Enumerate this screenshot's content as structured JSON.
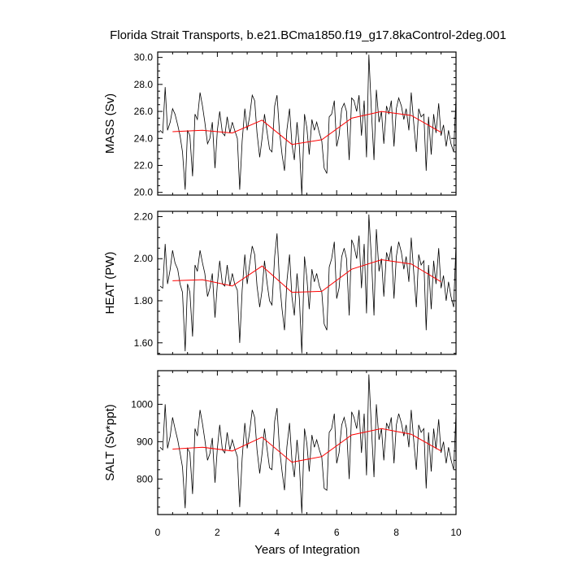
{
  "title": "Florida Strait Transports, b.e21.BCma1850.f19_g17.8kaControl-2deg.001",
  "xlabel": "Years of Integration",
  "chart_data": [
    {
      "type": "line",
      "ylabel": "MASS (Sv)",
      "xlim": [
        0,
        10
      ],
      "ylim": [
        19.8,
        30.4
      ],
      "yticks": [
        20.0,
        22.0,
        24.0,
        26.0,
        28.0,
        30.0
      ],
      "ytick_labels": [
        "20.0",
        "22.0",
        "24.0",
        "26.0",
        "28.0",
        "30.0"
      ],
      "xticks": [
        0,
        2,
        4,
        6,
        8,
        10
      ],
      "xtick_labels": [
        "0",
        "2",
        "4",
        "6",
        "8",
        "10"
      ],
      "series": [
        {
          "color": "#000000",
          "x": [
            0.08,
            0.17,
            0.25,
            0.33,
            0.42,
            0.5,
            0.58,
            0.67,
            0.75,
            0.83,
            0.92,
            1.0,
            1.08,
            1.17,
            1.25,
            1.33,
            1.42,
            1.5,
            1.58,
            1.67,
            1.75,
            1.83,
            1.92,
            2.0,
            2.08,
            2.17,
            2.25,
            2.33,
            2.42,
            2.5,
            2.58,
            2.67,
            2.75,
            2.83,
            2.92,
            3.0,
            3.08,
            3.17,
            3.25,
            3.33,
            3.42,
            3.5,
            3.58,
            3.67,
            3.75,
            3.83,
            3.92,
            4.0,
            4.08,
            4.17,
            4.25,
            4.33,
            4.42,
            4.5,
            4.58,
            4.67,
            4.75,
            4.83,
            4.92,
            5.0,
            5.08,
            5.17,
            5.25,
            5.33,
            5.42,
            5.5,
            5.58,
            5.67,
            5.75,
            5.83,
            5.92,
            6.0,
            6.08,
            6.17,
            6.25,
            6.33,
            6.42,
            6.5,
            6.58,
            6.67,
            6.75,
            6.83,
            6.92,
            7.0,
            7.08,
            7.17,
            7.25,
            7.33,
            7.42,
            7.5,
            7.58,
            7.67,
            7.75,
            7.83,
            7.92,
            8.0,
            8.08,
            8.17,
            8.25,
            8.33,
            8.42,
            8.5,
            8.58,
            8.67,
            8.75,
            8.83,
            8.92,
            9.0,
            9.08,
            9.17,
            9.25,
            9.33,
            9.42,
            9.5,
            9.58,
            9.67,
            9.75,
            9.83,
            9.92,
            10.0
          ],
          "y": [
            24.6,
            24.4,
            27.8,
            24.6,
            25.2,
            26.2,
            25.8,
            25.0,
            24.2,
            23.0,
            20.2,
            24.6,
            24.2,
            21.2,
            25.8,
            25.4,
            27.4,
            26.4,
            25.2,
            23.6,
            24.0,
            25.2,
            21.8,
            24.6,
            26.0,
            24.4,
            24.2,
            25.6,
            24.4,
            25.2,
            24.6,
            24.0,
            20.2,
            23.8,
            26.2,
            24.6,
            25.6,
            27.2,
            26.8,
            24.4,
            22.6,
            24.0,
            25.8,
            24.4,
            23.2,
            23.0,
            26.4,
            27.2,
            24.6,
            22.8,
            21.6,
            24.6,
            26.2,
            23.6,
            22.4,
            25.2,
            23.4,
            19.8,
            25.8,
            24.8,
            22.8,
            25.4,
            24.6,
            25.2,
            24.4,
            23.8,
            21.8,
            21.4,
            25.6,
            25.8,
            26.8,
            23.4,
            24.2,
            26.2,
            26.6,
            26.0,
            22.4,
            27.0,
            26.8,
            26.0,
            27.2,
            24.2,
            26.8,
            22.6,
            30.2,
            25.8,
            22.4,
            27.6,
            25.2,
            26.0,
            23.6,
            26.4,
            25.8,
            26.8,
            23.4,
            26.2,
            27.0,
            26.4,
            25.4,
            26.2,
            24.6,
            27.4,
            25.2,
            23.0,
            26.2,
            25.6,
            25.8,
            21.6,
            25.6,
            22.8,
            25.8,
            24.4,
            26.6,
            24.2,
            25.0,
            23.4,
            24.6,
            23.6,
            23.0,
            27.0
          ]
        },
        {
          "color": "#ff0000",
          "x": [
            0.5,
            1.5,
            2.5,
            3.5,
            4.5,
            5.5,
            6.5,
            7.5,
            8.5,
            9.5
          ],
          "y": [
            24.5,
            24.6,
            24.4,
            25.35,
            23.55,
            23.9,
            25.5,
            26.0,
            25.7,
            24.45
          ]
        }
      ]
    },
    {
      "type": "line",
      "ylabel": "HEAT (PW)",
      "xlim": [
        0,
        10
      ],
      "ylim": [
        1.545,
        2.225
      ],
      "yticks": [
        1.6,
        1.8,
        2.0,
        2.2
      ],
      "ytick_labels": [
        "1.60",
        "1.80",
        "2.00",
        "2.20"
      ],
      "xticks": [
        0,
        2,
        4,
        6,
        8,
        10
      ],
      "xtick_labels": [
        "0",
        "2",
        "4",
        "6",
        "8",
        "10"
      ],
      "series": [
        {
          "color": "#000000",
          "x": [
            0.08,
            0.17,
            0.25,
            0.33,
            0.42,
            0.5,
            0.58,
            0.67,
            0.75,
            0.83,
            0.92,
            1.0,
            1.08,
            1.17,
            1.25,
            1.33,
            1.42,
            1.5,
            1.58,
            1.67,
            1.75,
            1.83,
            1.92,
            2.0,
            2.08,
            2.17,
            2.25,
            2.33,
            2.42,
            2.5,
            2.58,
            2.67,
            2.75,
            2.83,
            2.92,
            3.0,
            3.08,
            3.17,
            3.25,
            3.33,
            3.42,
            3.5,
            3.58,
            3.67,
            3.75,
            3.83,
            3.92,
            4.0,
            4.08,
            4.17,
            4.25,
            4.33,
            4.42,
            4.5,
            4.58,
            4.67,
            4.75,
            4.83,
            4.92,
            5.0,
            5.08,
            5.17,
            5.25,
            5.33,
            5.42,
            5.5,
            5.58,
            5.67,
            5.75,
            5.83,
            5.92,
            6.0,
            6.08,
            6.17,
            6.25,
            6.33,
            6.42,
            6.5,
            6.58,
            6.67,
            6.75,
            6.83,
            6.92,
            7.0,
            7.08,
            7.17,
            7.25,
            7.33,
            7.42,
            7.5,
            7.58,
            7.67,
            7.75,
            7.83,
            7.92,
            8.0,
            8.08,
            8.17,
            8.25,
            8.33,
            8.42,
            8.5,
            8.58,
            8.67,
            8.75,
            8.83,
            8.92,
            9.0,
            9.08,
            9.17,
            9.25,
            9.33,
            9.42,
            9.5,
            9.58,
            9.67,
            9.75,
            9.83,
            9.92,
            10.0
          ],
          "y": [
            1.87,
            1.86,
            2.07,
            1.88,
            1.95,
            2.04,
            1.98,
            1.95,
            1.88,
            1.84,
            1.56,
            1.88,
            1.84,
            1.63,
            1.97,
            1.94,
            2.04,
            1.98,
            1.93,
            1.82,
            1.86,
            1.93,
            1.72,
            1.88,
            1.99,
            1.88,
            1.87,
            1.97,
            1.87,
            1.93,
            1.88,
            1.85,
            1.6,
            1.85,
            2.02,
            1.88,
            1.97,
            2.06,
            2.02,
            1.87,
            1.77,
            1.85,
            1.99,
            1.88,
            1.8,
            1.78,
            2.01,
            2.12,
            1.9,
            1.76,
            1.66,
            1.89,
            2.02,
            1.82,
            1.73,
            1.93,
            1.81,
            1.55,
            2.01,
            1.91,
            1.76,
            1.95,
            1.89,
            1.93,
            1.87,
            1.84,
            1.69,
            1.66,
            1.96,
            2.0,
            2.08,
            1.81,
            1.86,
            2.01,
            2.05,
            2.0,
            1.73,
            2.09,
            2.06,
            2.0,
            2.11,
            1.86,
            2.07,
            1.74,
            2.21,
            1.99,
            1.73,
            2.14,
            1.94,
            2.0,
            1.82,
            2.03,
            1.99,
            2.06,
            1.81,
            2.01,
            2.08,
            2.03,
            1.95,
            2.01,
            1.89,
            2.1,
            1.94,
            1.77,
            2.02,
            1.97,
            1.99,
            1.66,
            1.97,
            1.76,
            1.99,
            1.88,
            2.05,
            1.86,
            1.92,
            1.8,
            1.89,
            1.82,
            1.77,
            2.07
          ]
        },
        {
          "color": "#ff0000",
          "x": [
            0.5,
            1.5,
            2.5,
            3.5,
            4.5,
            5.5,
            6.5,
            7.5,
            8.5,
            9.5
          ],
          "y": [
            1.895,
            1.9,
            1.87,
            1.965,
            1.84,
            1.845,
            1.95,
            1.995,
            1.975,
            1.89
          ]
        }
      ]
    },
    {
      "type": "line",
      "ylabel": "SALT (Sv*ppt)",
      "xlim": [
        0,
        10
      ],
      "ylim": [
        705,
        1090
      ],
      "yticks": [
        800,
        900,
        1000
      ],
      "ytick_labels": [
        "800",
        "900",
        "1000"
      ],
      "xticks": [
        0,
        2,
        4,
        6,
        8,
        10
      ],
      "xtick_labels": [
        "0",
        "2",
        "4",
        "6",
        "8",
        "10"
      ],
      "series": [
        {
          "color": "#000000",
          "x": [
            0.08,
            0.17,
            0.25,
            0.33,
            0.42,
            0.5,
            0.58,
            0.67,
            0.75,
            0.83,
            0.92,
            1.0,
            1.08,
            1.17,
            1.25,
            1.33,
            1.42,
            1.5,
            1.58,
            1.67,
            1.75,
            1.83,
            1.92,
            2.0,
            2.08,
            2.17,
            2.25,
            2.33,
            2.42,
            2.5,
            2.58,
            2.67,
            2.75,
            2.83,
            2.92,
            3.0,
            3.08,
            3.17,
            3.25,
            3.33,
            3.42,
            3.5,
            3.58,
            3.67,
            3.75,
            3.83,
            3.92,
            4.0,
            4.08,
            4.17,
            4.25,
            4.33,
            4.42,
            4.5,
            4.58,
            4.67,
            4.75,
            4.83,
            4.92,
            5.0,
            5.08,
            5.17,
            5.25,
            5.33,
            5.42,
            5.5,
            5.58,
            5.67,
            5.75,
            5.83,
            5.92,
            6.0,
            6.08,
            6.17,
            6.25,
            6.33,
            6.42,
            6.5,
            6.58,
            6.67,
            6.75,
            6.83,
            6.92,
            7.0,
            7.08,
            7.17,
            7.25,
            7.33,
            7.42,
            7.5,
            7.58,
            7.67,
            7.75,
            7.83,
            7.92,
            8.0,
            8.08,
            8.17,
            8.25,
            8.33,
            8.42,
            8.5,
            8.58,
            8.67,
            8.75,
            8.83,
            8.92,
            9.0,
            9.08,
            9.17,
            9.25,
            9.33,
            9.42,
            9.5,
            9.58,
            9.67,
            9.75,
            9.83,
            9.92,
            10.0
          ],
          "y": [
            885,
            878,
            1000,
            882,
            915,
            965,
            935,
            905,
            870,
            832,
            722,
            882,
            870,
            760,
            935,
            915,
            985,
            948,
            905,
            850,
            868,
            910,
            790,
            882,
            945,
            878,
            870,
            925,
            878,
            905,
            882,
            860,
            725,
            855,
            950,
            882,
            925,
            985,
            965,
            878,
            815,
            868,
            935,
            878,
            830,
            825,
            955,
            990,
            885,
            820,
            770,
            885,
            950,
            852,
            805,
            905,
            840,
            708,
            935,
            895,
            820,
            918,
            885,
            905,
            878,
            858,
            775,
            770,
            925,
            935,
            975,
            842,
            870,
            945,
            965,
            935,
            800,
            980,
            965,
            935,
            985,
            870,
            975,
            810,
            1080,
            930,
            805,
            1000,
            905,
            935,
            850,
            950,
            935,
            965,
            842,
            945,
            975,
            950,
            915,
            945,
            885,
            985,
            905,
            825,
            945,
            925,
            935,
            775,
            925,
            820,
            935,
            880,
            960,
            870,
            900,
            842,
            885,
            852,
            825,
            975
          ]
        },
        {
          "color": "#ff0000",
          "x": [
            0.5,
            1.5,
            2.5,
            3.5,
            4.5,
            5.5,
            6.5,
            7.5,
            8.5,
            9.5
          ],
          "y": [
            880,
            885,
            875,
            912,
            845,
            860,
            918,
            935,
            920,
            875
          ]
        }
      ]
    }
  ]
}
